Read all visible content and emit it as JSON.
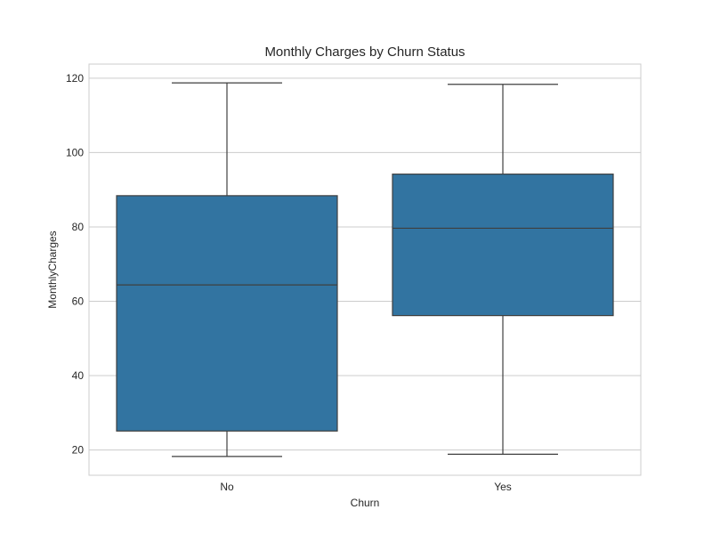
{
  "chart_data": {
    "type": "box",
    "title": "Monthly Charges by Churn Status",
    "xlabel": "Churn",
    "ylabel": "MonthlyCharges",
    "categories": [
      "No",
      "Yes"
    ],
    "boxes": [
      {
        "category": "No",
        "whisker_low": 18.25,
        "q1": 25.1,
        "median": 64.4,
        "q3": 88.4,
        "whisker_high": 118.75
      },
      {
        "category": "Yes",
        "whisker_low": 18.85,
        "q1": 56.15,
        "median": 79.65,
        "q3": 94.2,
        "whisker_high": 118.35
      }
    ],
    "yticks": [
      20,
      40,
      60,
      80,
      100,
      120
    ],
    "ylim": [
      13.2,
      123.8
    ],
    "grid": true,
    "color": "#3274a1"
  }
}
